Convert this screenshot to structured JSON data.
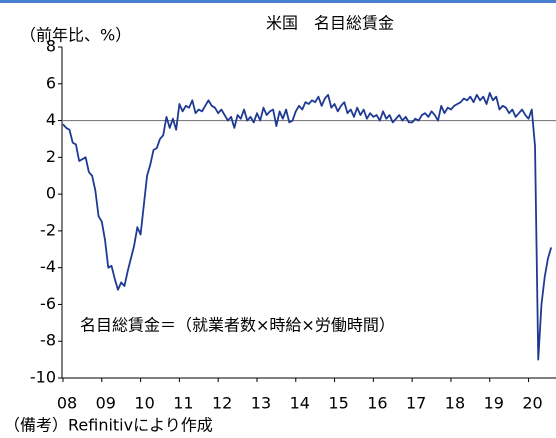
{
  "chart_data": {
    "type": "line",
    "title": "米国　名目総賃金",
    "y_label": "（前年比、%）",
    "annotation": "名目総賃金＝（就業者数×時給×労働時間）",
    "source": "（備考）Refinitivにより作成",
    "categories": [
      "08",
      null,
      null,
      null,
      null,
      null,
      null,
      null,
      null,
      null,
      null,
      null,
      "09",
      null,
      null,
      null,
      null,
      null,
      null,
      null,
      null,
      null,
      null,
      null,
      "10",
      null,
      null,
      null,
      null,
      null,
      null,
      null,
      null,
      null,
      null,
      null,
      "11",
      null,
      null,
      null,
      null,
      null,
      null,
      null,
      null,
      null,
      null,
      null,
      "12",
      null,
      null,
      null,
      null,
      null,
      null,
      null,
      null,
      null,
      null,
      null,
      "13",
      null,
      null,
      null,
      null,
      null,
      null,
      null,
      null,
      null,
      null,
      null,
      "14",
      null,
      null,
      null,
      null,
      null,
      null,
      null,
      null,
      null,
      null,
      null,
      "15",
      null,
      null,
      null,
      null,
      null,
      null,
      null,
      null,
      null,
      null,
      null,
      "16",
      null,
      null,
      null,
      null,
      null,
      null,
      null,
      null,
      null,
      null,
      null,
      "17",
      null,
      null,
      null,
      null,
      null,
      null,
      null,
      null,
      null,
      null,
      null,
      "18",
      null,
      null,
      null,
      null,
      null,
      null,
      null,
      null,
      null,
      null,
      null,
      "19",
      null,
      null,
      null,
      null,
      null,
      null,
      null,
      null,
      null,
      null,
      null,
      "20",
      null,
      null,
      null,
      null,
      null,
      null,
      null
    ],
    "series": [
      {
        "name": "名目総賃金",
        "color": "#1f3a93",
        "values": [
          3.8,
          3.6,
          3.5,
          2.8,
          2.7,
          1.8,
          1.9,
          2.0,
          1.2,
          1.0,
          0.2,
          -1.2,
          -1.5,
          -2.5,
          -4.0,
          -3.9,
          -4.6,
          -5.2,
          -4.8,
          -5.0,
          -4.2,
          -3.5,
          -2.8,
          -1.8,
          -2.2,
          -0.6,
          1.0,
          1.6,
          2.4,
          2.5,
          3.0,
          3.2,
          4.2,
          3.6,
          4.1,
          3.5,
          4.9,
          4.5,
          4.8,
          4.7,
          5.1,
          4.4,
          4.6,
          4.5,
          4.8,
          5.1,
          4.8,
          4.7,
          4.4,
          4.6,
          4.3,
          4.0,
          4.2,
          3.6,
          4.3,
          4.1,
          4.6,
          4.0,
          4.2,
          3.9,
          4.4,
          4.0,
          4.7,
          4.3,
          4.5,
          4.6,
          3.7,
          4.5,
          4.1,
          4.6,
          3.9,
          4.0,
          4.5,
          4.8,
          4.6,
          5.0,
          4.9,
          5.1,
          5.0,
          5.3,
          4.8,
          5.2,
          5.4,
          4.7,
          4.9,
          4.5,
          4.8,
          5.0,
          4.4,
          4.6,
          4.2,
          4.7,
          4.3,
          4.6,
          4.1,
          4.4,
          4.2,
          4.3,
          4.0,
          4.5,
          4.1,
          4.3,
          3.9,
          4.1,
          4.3,
          4.0,
          4.2,
          3.9,
          3.9,
          4.1,
          4.0,
          4.3,
          4.4,
          4.2,
          4.5,
          4.3,
          4.0,
          4.8,
          4.4,
          4.7,
          4.6,
          4.8,
          4.9,
          5.0,
          5.2,
          5.1,
          5.3,
          5.0,
          5.4,
          5.1,
          5.3,
          4.9,
          5.5,
          5.1,
          5.3,
          4.6,
          4.8,
          4.7,
          4.4,
          4.6,
          4.2,
          4.4,
          4.6,
          4.3,
          4.1,
          4.6,
          2.6,
          -9.0,
          -6.0,
          -4.5,
          -3.5,
          -2.9
        ]
      }
    ],
    "ylim": [
      -10,
      8
    ],
    "yticks": [
      -10,
      -8,
      -6,
      -4,
      -2,
      0,
      2,
      4,
      6,
      8
    ],
    "hline": 4,
    "hline_color": "#808080"
  }
}
